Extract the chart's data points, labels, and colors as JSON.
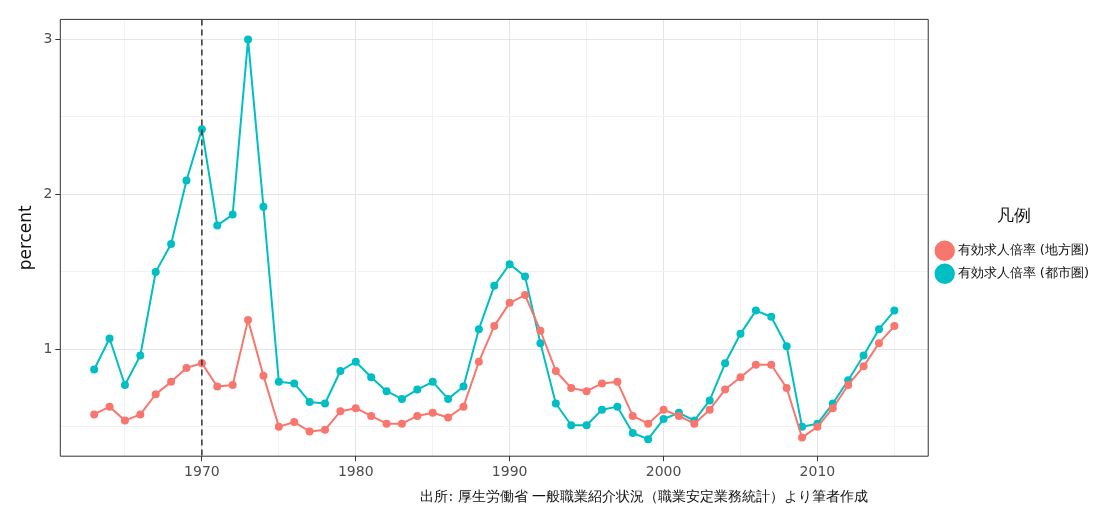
{
  "chart_data": {
    "type": "line",
    "ylabel": "percent",
    "legend_title": "凡例",
    "legend": "right",
    "grid": true,
    "marker": "circle",
    "line_style": "solid",
    "x": [
      1963,
      1964,
      1965,
      1966,
      1967,
      1968,
      1969,
      1970,
      1971,
      1972,
      1973,
      1974,
      1975,
      1976,
      1977,
      1978,
      1979,
      1980,
      1981,
      1982,
      1983,
      1984,
      1985,
      1986,
      1987,
      1988,
      1989,
      1990,
      1991,
      1992,
      1993,
      1994,
      1995,
      1996,
      1997,
      1998,
      1999,
      2000,
      2001,
      2002,
      2003,
      2004,
      2005,
      2006,
      2007,
      2008,
      2009,
      2010,
      2011,
      2012,
      2013,
      2014,
      2015
    ],
    "series": [
      {
        "name": "有効求人倍率 (地方圏)",
        "color": "#f8766d",
        "values": [
          0.58,
          0.63,
          0.54,
          0.58,
          0.71,
          0.79,
          0.88,
          0.91,
          0.76,
          0.77,
          1.19,
          0.83,
          0.5,
          0.53,
          0.47,
          0.48,
          0.6,
          0.62,
          0.57,
          0.52,
          0.52,
          0.57,
          0.59,
          0.56,
          0.63,
          0.92,
          1.15,
          1.3,
          1.35,
          1.12,
          0.86,
          0.75,
          0.73,
          0.78,
          0.79,
          0.57,
          0.52,
          0.61,
          0.57,
          0.52,
          0.61,
          0.74,
          0.82,
          0.9,
          0.9,
          0.75,
          0.43,
          0.5,
          0.62,
          0.77,
          0.89,
          1.04,
          1.15
        ]
      },
      {
        "name": "有効求人倍率 (都市圏)",
        "color": "#00bfc4",
        "values": [
          0.87,
          1.07,
          0.77,
          0.96,
          1.5,
          1.68,
          2.09,
          2.42,
          1.8,
          1.87,
          3.0,
          1.92,
          0.79,
          0.78,
          0.66,
          0.65,
          0.86,
          0.92,
          0.82,
          0.73,
          0.68,
          0.74,
          0.79,
          0.68,
          0.76,
          1.13,
          1.41,
          1.55,
          1.47,
          1.04,
          0.65,
          0.51,
          0.51,
          0.61,
          0.63,
          0.46,
          0.42,
          0.55,
          0.59,
          0.54,
          0.67,
          0.91,
          1.1,
          1.25,
          1.21,
          1.02,
          0.5,
          0.52,
          0.65,
          0.8,
          0.96,
          1.13,
          1.25
        ]
      }
    ],
    "xlim": [
      1960.8,
      2017.2
    ],
    "ylim": [
      0.31,
      3.13
    ],
    "xticks": [
      {
        "value": 1965,
        "label": null
      },
      1970,
      {
        "value": 1975,
        "label": null
      },
      1980,
      {
        "value": 1985,
        "label": null
      },
      1990,
      {
        "value": 1995,
        "label": null
      },
      2000,
      {
        "value": 2005,
        "label": null
      },
      2010,
      {
        "value": 2015,
        "label": null
      }
    ],
    "yticks": [
      {
        "value": 0.5,
        "label": null
      },
      1,
      {
        "value": 1.5,
        "label": null
      },
      2,
      {
        "value": 2.5,
        "label": null
      },
      3
    ],
    "ref_lines": [
      {
        "axis": "x",
        "value": 1970,
        "label": null,
        "color": "#333333",
        "line_style": "dashed"
      }
    ],
    "annotations": [
      "出所: 厚生労働省 一般職業紹介状況（職業安定業務統計）より筆者作成"
    ]
  }
}
